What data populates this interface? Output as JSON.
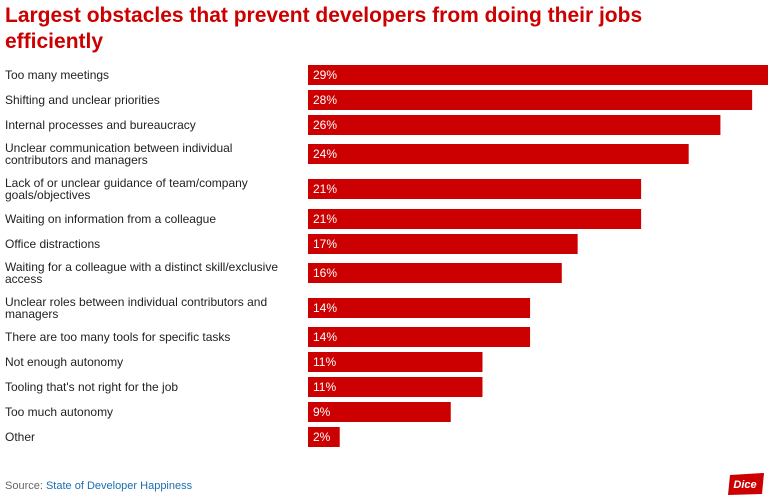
{
  "chart_data": {
    "type": "bar",
    "orientation": "horizontal",
    "title": "Largest obstacles that prevent developers from doing their jobs efficiently",
    "categories": [
      [
        "Too many meetings"
      ],
      [
        "Shifting and unclear priorities"
      ],
      [
        "Internal processes and bureaucracy"
      ],
      [
        "Unclear communication between individual",
        "contributors and managers"
      ],
      [
        "Lack of or unclear guidance of team/company",
        "goals/objectives"
      ],
      [
        "Waiting on information from a colleague"
      ],
      [
        "Office distractions"
      ],
      [
        "Waiting for a colleague with a distinct skill/exclusive",
        "access"
      ],
      [
        "Unclear roles between individual contributors and",
        "managers"
      ],
      [
        "There are too many tools for specific tasks"
      ],
      [
        "Not enough autonomy"
      ],
      [
        "Tooling that's not right for the job"
      ],
      [
        "Too much autonomy"
      ],
      [
        "Other"
      ]
    ],
    "values": [
      29,
      28,
      26,
      24,
      21,
      21,
      17,
      16,
      14,
      14,
      11,
      11,
      9,
      2
    ],
    "value_labels": [
      "29%",
      "28%",
      "26%",
      "24%",
      "21%",
      "21%",
      "17%",
      "16%",
      "14%",
      "14%",
      "11%",
      "11%",
      "9%",
      "2%"
    ],
    "unit": "%",
    "xlim": [
      0,
      29
    ],
    "bar_color": "#cc0000",
    "label_color": "#ffffff",
    "grid": false,
    "legend": "none"
  },
  "source": {
    "prefix": "Source: ",
    "link_text": "State of Developer Happiness"
  },
  "logo": {
    "text": "Dice",
    "color": "#cc0000"
  },
  "colors": {
    "title": "#cc0000",
    "bar": "#cc0000",
    "category_text": "#222222",
    "source_link": "#1a6fb0"
  }
}
